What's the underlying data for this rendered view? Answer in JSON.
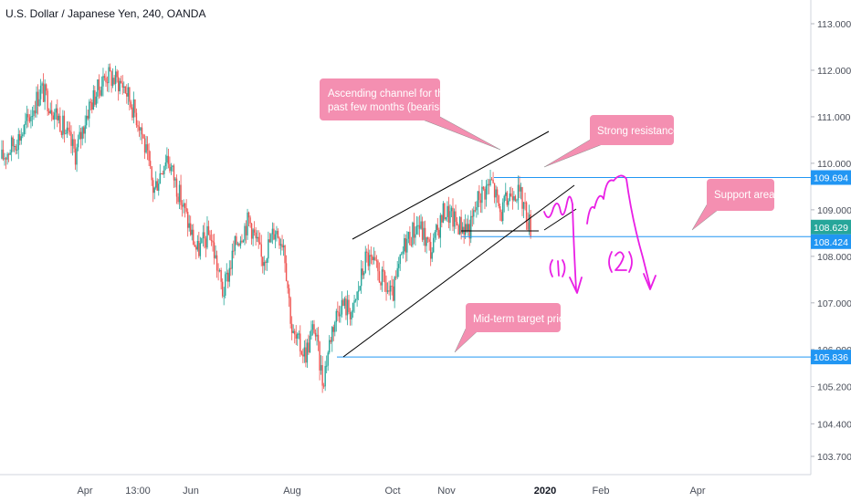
{
  "header": {
    "symbol_title": "U.S. Dollar / Japanese Yen, 240, OANDA"
  },
  "colors": {
    "up": "#26a69a",
    "down": "#ef5350",
    "hline": "#2196f3",
    "trend": "#000000",
    "callout_bg": "#f48fb1",
    "callout_text": "#ffffff",
    "magenta": "#e91ee5",
    "axis_text": "#4a4f5a"
  },
  "chart_data": {
    "type": "candlestick",
    "title": "U.S. Dollar / Japanese Yen, 240, OANDA",
    "ylim": [
      103.2,
      113.3
    ],
    "y_ticks": [
      "113.000",
      "112.000",
      "111.000",
      "110.000",
      "109.000",
      "108.000",
      "107.000",
      "106.000",
      "105.200",
      "104.400",
      "103.700"
    ],
    "x_ticks": [
      "Apr",
      "13:00",
      "Jun",
      "Aug",
      "Oct",
      "Nov",
      "2020",
      "Feb",
      "Apr"
    ],
    "price_labels": [
      {
        "value": 109.694,
        "text": "109.694",
        "color": "#2196f3"
      },
      {
        "value": 108.629,
        "text": "108.629",
        "color": "#26a69a"
      },
      {
        "value": 108.424,
        "text": "108.424",
        "color": "#2196f3"
      },
      {
        "value": 105.836,
        "text": "105.836",
        "color": "#2196f3"
      }
    ],
    "horizontal_levels": [
      109.694,
      108.424,
      105.836
    ],
    "price_path": [
      {
        "t": 0.0,
        "p": 110.1
      },
      {
        "t": 2.5,
        "p": 110.7
      },
      {
        "t": 4.5,
        "p": 111.6
      },
      {
        "t": 6.5,
        "p": 111.0
      },
      {
        "t": 8.5,
        "p": 110.2
      },
      {
        "t": 10.0,
        "p": 111.2
      },
      {
        "t": 12.0,
        "p": 111.9
      },
      {
        "t": 14.0,
        "p": 111.7
      },
      {
        "t": 16.0,
        "p": 110.8
      },
      {
        "t": 17.5,
        "p": 109.4
      },
      {
        "t": 19.0,
        "p": 110.2
      },
      {
        "t": 21.0,
        "p": 109.0
      },
      {
        "t": 22.5,
        "p": 108.1
      },
      {
        "t": 24.0,
        "p": 108.5
      },
      {
        "t": 25.5,
        "p": 107.2
      },
      {
        "t": 27.0,
        "p": 108.3
      },
      {
        "t": 28.5,
        "p": 108.8
      },
      {
        "t": 30.0,
        "p": 107.9
      },
      {
        "t": 31.5,
        "p": 108.6
      },
      {
        "t": 32.5,
        "p": 108.3
      },
      {
        "t": 33.5,
        "p": 106.3
      },
      {
        "t": 35.0,
        "p": 105.9
      },
      {
        "t": 36.0,
        "p": 106.5
      },
      {
        "t": 37.0,
        "p": 105.3
      },
      {
        "t": 38.0,
        "p": 106.4
      },
      {
        "t": 39.0,
        "p": 107.0
      },
      {
        "t": 40.5,
        "p": 106.8
      },
      {
        "t": 42.0,
        "p": 108.0
      },
      {
        "t": 43.5,
        "p": 107.6
      },
      {
        "t": 45.0,
        "p": 107.1
      },
      {
        "t": 46.5,
        "p": 108.3
      },
      {
        "t": 48.0,
        "p": 108.7
      },
      {
        "t": 49.5,
        "p": 108.1
      },
      {
        "t": 51.0,
        "p": 109.0
      },
      {
        "t": 52.5,
        "p": 108.7
      },
      {
        "t": 54.0,
        "p": 108.6
      },
      {
        "t": 55.0,
        "p": 109.3
      },
      {
        "t": 56.5,
        "p": 109.6
      },
      {
        "t": 57.5,
        "p": 108.9
      },
      {
        "t": 59.0,
        "p": 109.5
      },
      {
        "t": 60.0,
        "p": 109.2
      },
      {
        "t": 61.0,
        "p": 108.6
      }
    ],
    "annotations": [
      "Ascending channel for the past few months (bearish)",
      "Strong resistance",
      "Support area",
      "Mid-term target price",
      "(1)",
      "(2)"
    ]
  },
  "callouts": {
    "channel_line1": "Ascending channel for the",
    "channel_line2": "past few months (bearish)",
    "resistance": "Strong resistance",
    "support": "Support area",
    "target": "Mid-term target price"
  },
  "hand_labels": {
    "first": "(1)",
    "second": "(2)"
  }
}
